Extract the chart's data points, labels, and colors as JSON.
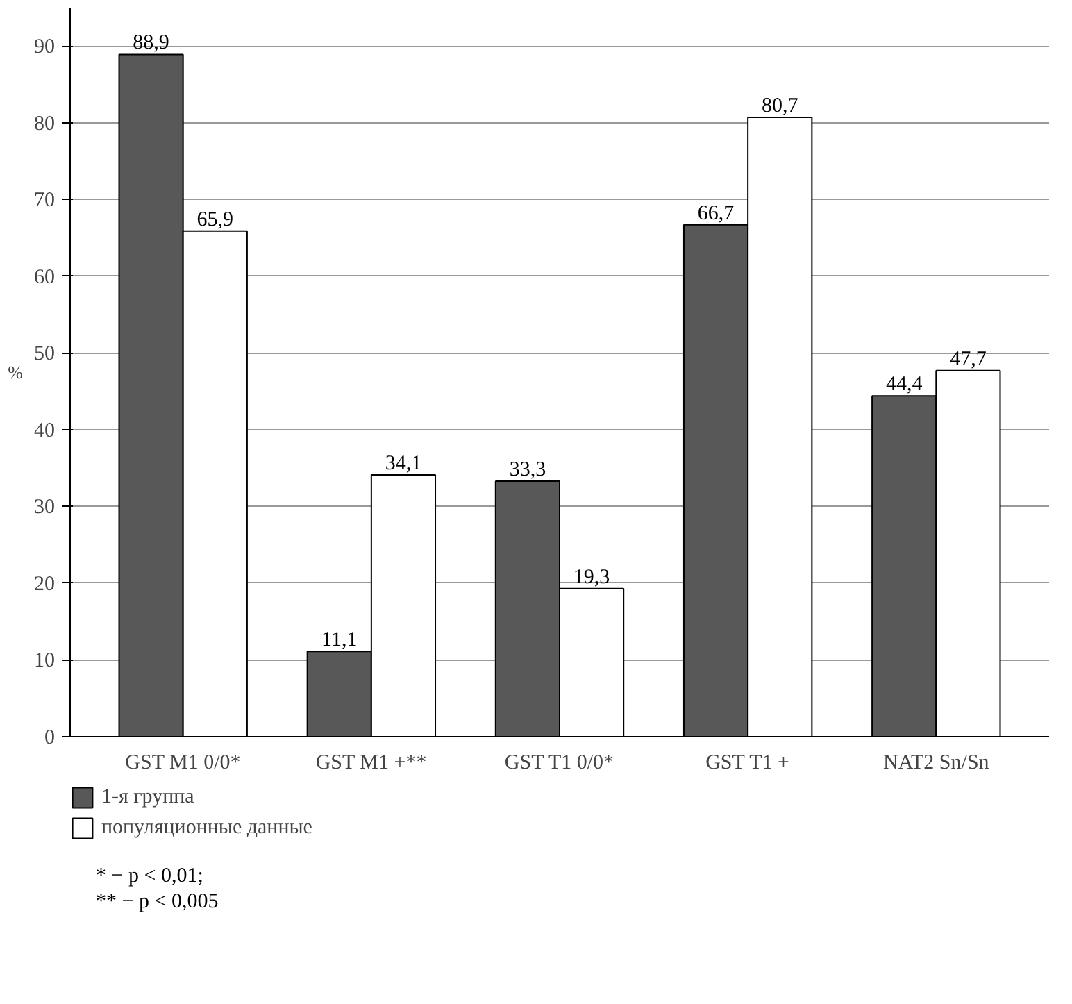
{
  "chart_data": {
    "type": "bar",
    "categories": [
      "GST M1 0/0*",
      "GST M1 +**",
      "GST T1 0/0*",
      "GST T1 +",
      "NAT2 Sn/Sn"
    ],
    "series": [
      {
        "name": "1-я группа",
        "color": "#585858",
        "values": [
          88.9,
          11.1,
          33.3,
          66.7,
          44.4
        ],
        "value_labels": [
          "88,9",
          "11,1",
          "33,3",
          "66,7",
          "44,4"
        ]
      },
      {
        "name": "популяционные данные",
        "color": "#ffffff",
        "values": [
          65.9,
          34.1,
          19.3,
          80.7,
          47.7
        ],
        "value_labels": [
          "65,9",
          "34,1",
          "19,3",
          "80,7",
          "47,7"
        ]
      }
    ],
    "ylabel": "%",
    "ylim": [
      0,
      95
    ],
    "yticks": [
      0,
      10,
      20,
      30,
      40,
      50,
      60,
      70,
      80,
      90
    ],
    "grid": "y",
    "legend": "bottom left",
    "annotations": [
      "* − p < 0,01;",
      "** − p < 0,005"
    ]
  }
}
